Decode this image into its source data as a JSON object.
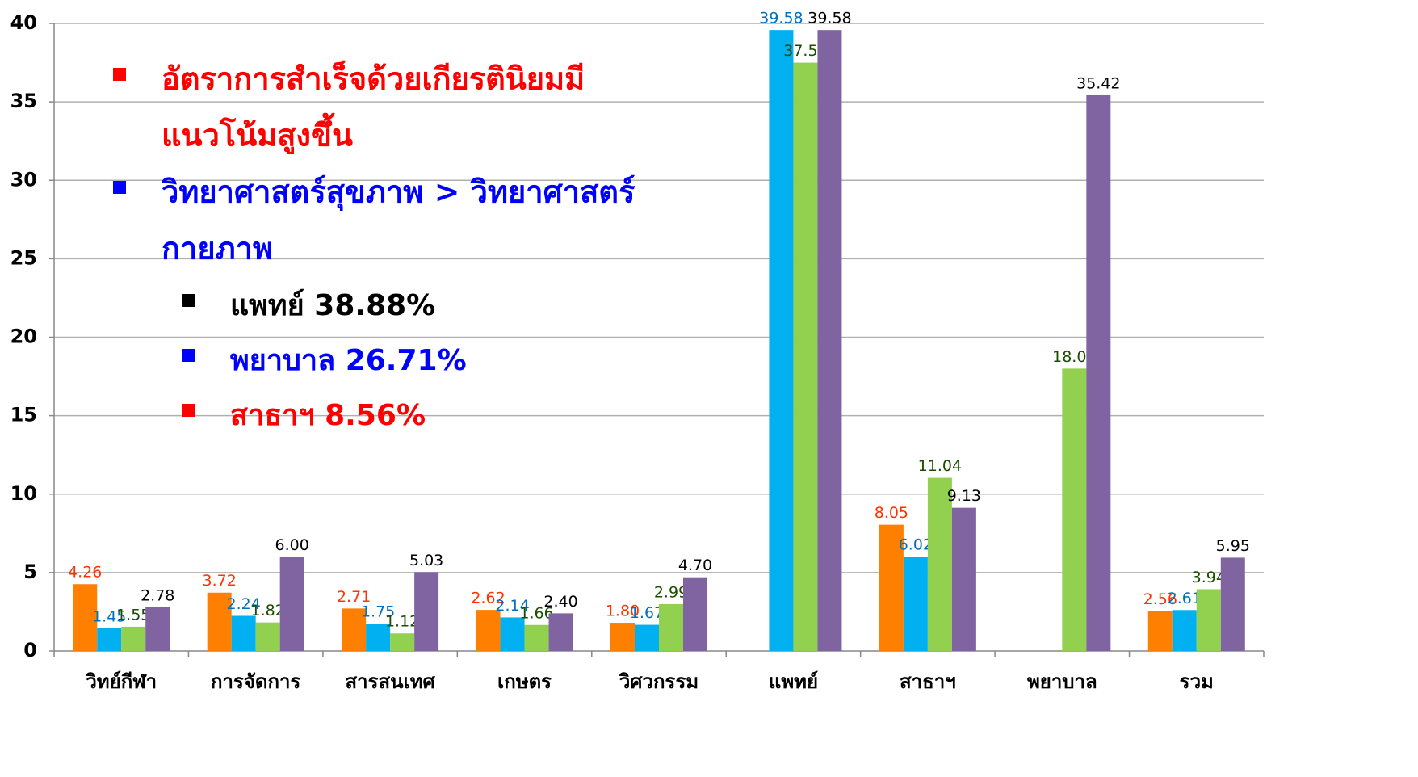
{
  "chart_data": {
    "type": "bar",
    "categories": [
      "วิทย์กีฬา",
      "การจัดการ",
      "สารสนเทศ",
      "เกษตร",
      "วิศวกรรม",
      "แพทย์",
      "สาธาฯ",
      "พยาบาล",
      "รวม"
    ],
    "series": [
      {
        "color": "#ff8000",
        "label_color": "#ff3300",
        "values": [
          4.26,
          3.72,
          2.71,
          2.62,
          1.8,
          null,
          8.05,
          null,
          2.56
        ],
        "value_labels": [
          "4.26",
          "3.72",
          "2.71",
          "2.62",
          "1.80",
          null,
          "8.05",
          null,
          "2.56"
        ]
      },
      {
        "color": "#00b0f0",
        "label_color": "#0070c0",
        "values": [
          1.45,
          2.24,
          1.75,
          2.14,
          1.67,
          39.58,
          6.02,
          null,
          2.61
        ],
        "value_labels": [
          "1.45",
          "2.24",
          "1.75",
          "2.14",
          "1.67",
          "39.58",
          "6.02",
          null,
          "2.61"
        ]
      },
      {
        "color": "#92d050",
        "label_color": "#1a4d00",
        "values": [
          1.55,
          1.82,
          1.12,
          1.66,
          2.99,
          37.5,
          11.04,
          18.0,
          3.94
        ],
        "value_labels": [
          "1.55",
          "1.82",
          "1.12",
          "1.66",
          "2.99",
          "37.50",
          "11.04",
          "18.00",
          "3.94"
        ]
      },
      {
        "color": "#8064a2",
        "label_color": "#000000",
        "values": [
          2.78,
          6.0,
          5.03,
          2.4,
          4.7,
          39.58,
          9.13,
          35.42,
          5.95
        ],
        "value_labels": [
          "2.78",
          "6.00",
          "5.03",
          "2.40",
          "4.70",
          "39.58",
          "9.13",
          "35.42",
          "5.95"
        ]
      }
    ],
    "ylim": [
      0,
      40
    ],
    "yticks": [
      0,
      5,
      10,
      15,
      20,
      25,
      30,
      35,
      40
    ],
    "grid": true,
    "annotations": [
      {
        "lines": [
          "อัตราการสำเร็จด้วยเกียรตินิยมมี",
          "แนวโน้มสูงขึ้น"
        ],
        "color": "#ff0000",
        "bullet_color": "#ff0000",
        "level": 1
      },
      {
        "lines": [
          "วิทยาศาสตร์สุขภาพ > วิทยาศาสตร์",
          "กายภาพ"
        ],
        "color": "#0000ff",
        "bullet_color": "#0000ff",
        "level": 1
      },
      {
        "lines": [
          "แพทย์ 38.88%"
        ],
        "color": "#000000",
        "bullet_color": "#000000",
        "level": 2
      },
      {
        "lines": [
          "พยาบาล 26.71%"
        ],
        "color": "#0000ff",
        "bullet_color": "#0000ff",
        "level": 2
      },
      {
        "lines": [
          "สาธาฯ 8.56%"
        ],
        "color": "#ff0000",
        "bullet_color": "#ff0000",
        "level": 2
      }
    ]
  }
}
